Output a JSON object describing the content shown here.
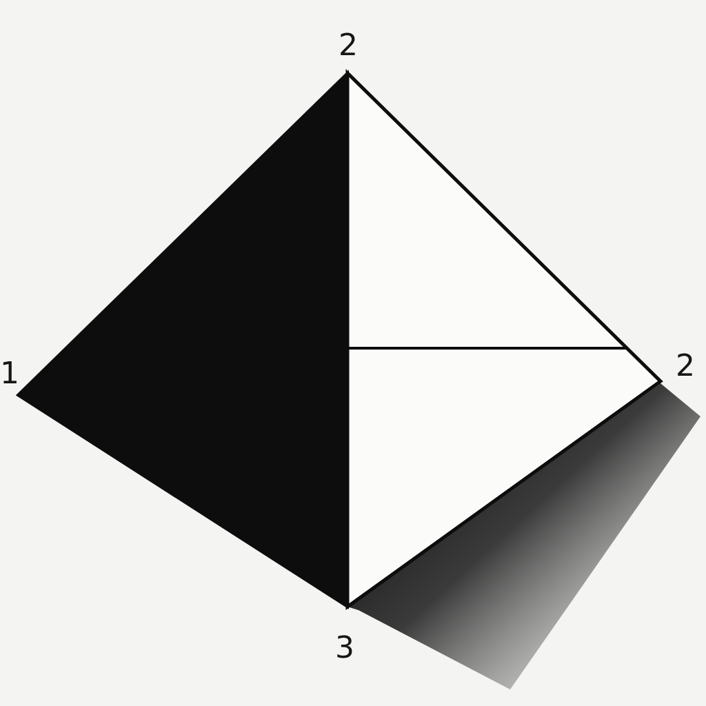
{
  "diagram": {
    "vertex_labels": {
      "left": "1",
      "top": "2",
      "right": "2",
      "bottom": "3"
    },
    "colors": {
      "background": "#f4f4f2",
      "ink": "#0d0d0d",
      "light_face": "#fbfbfa"
    }
  }
}
